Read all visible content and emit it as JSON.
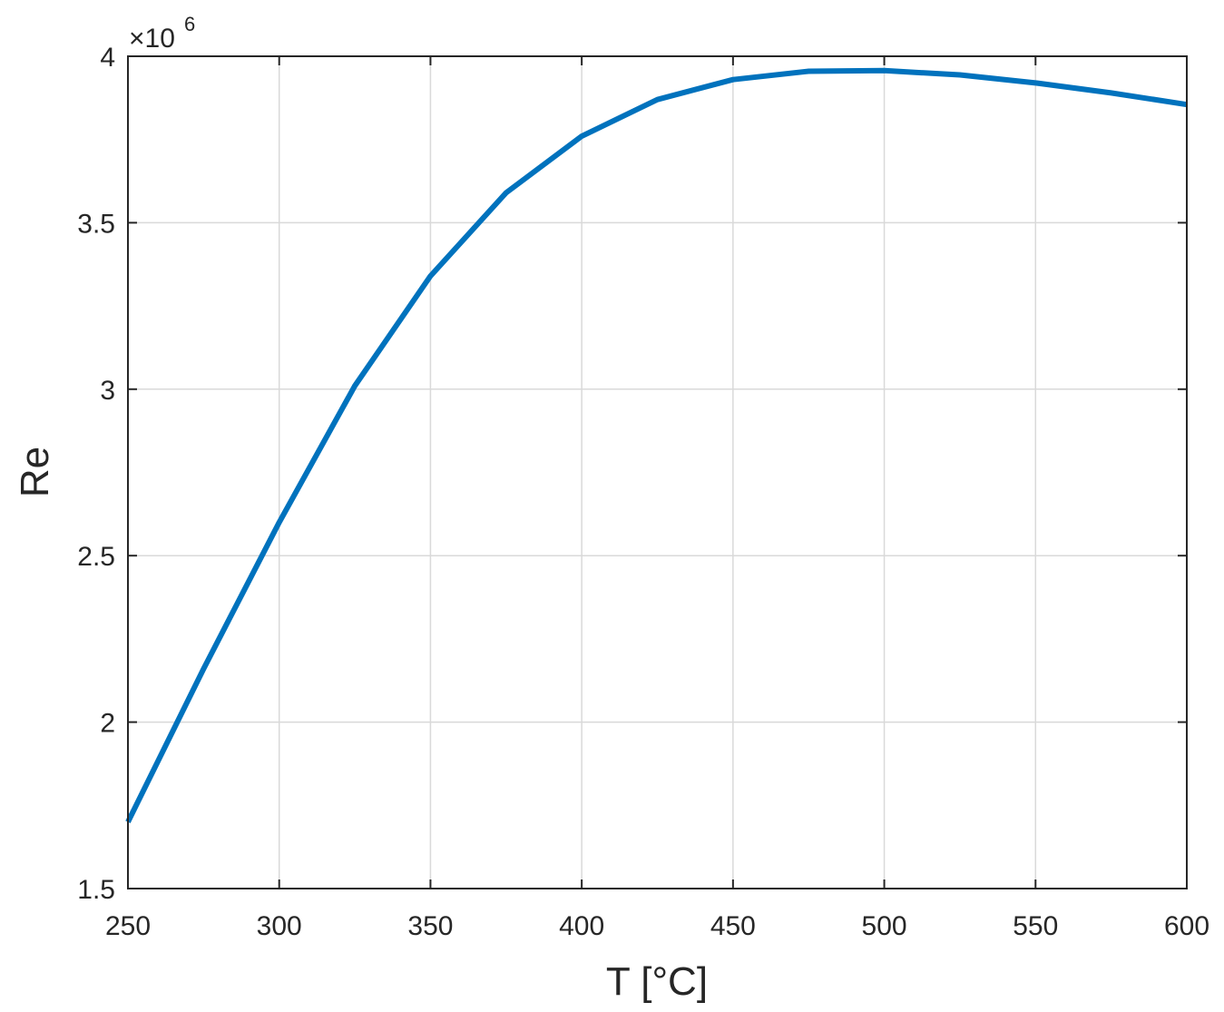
{
  "chart_data": {
    "type": "line",
    "title": "",
    "xlabel": "T [°C]",
    "ylabel": "Re",
    "y_multiplier_label": {
      "times": "×10",
      "exponent": "6"
    },
    "xlim": [
      250,
      600
    ],
    "ylim": [
      1.5,
      4
    ],
    "xticks": [
      "250",
      "300",
      "350",
      "400",
      "450",
      "500",
      "550",
      "600"
    ],
    "yticks": [
      "1.5",
      "2",
      "2.5",
      "3",
      "3.5",
      "4"
    ],
    "grid": true,
    "series": [
      {
        "color": "#0072BD",
        "x": [
          250,
          275,
          300,
          325,
          350,
          375,
          400,
          425,
          450,
          475,
          500,
          525,
          550,
          575,
          600
        ],
        "y": [
          1.7,
          2.16,
          2.6,
          3.01,
          3.34,
          3.59,
          3.76,
          3.87,
          3.93,
          3.955,
          3.957,
          3.944,
          3.92,
          3.89,
          3.855
        ]
      }
    ]
  }
}
